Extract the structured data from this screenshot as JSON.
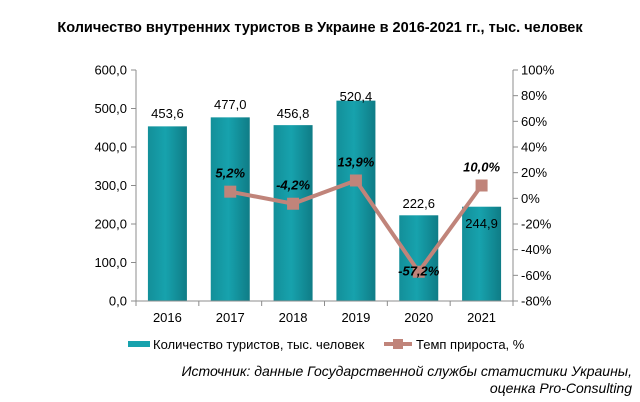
{
  "chart_data": {
    "type": "bar+line",
    "title": "Количество внутренних туристов в Украине в 2016-2021 гг., тыс. человек",
    "categories": [
      "2016",
      "2017",
      "2018",
      "2019",
      "2020",
      "2021"
    ],
    "series": [
      {
        "name": "Количество туристов, тыс. человек",
        "type": "bar",
        "axis": "left",
        "color": "#17a2ad",
        "values": [
          453.6,
          477.0,
          456.8,
          520.4,
          222.6,
          244.9
        ],
        "labels": [
          "453,6",
          "477,0",
          "456,8",
          "520,4",
          "222,6",
          "244,9"
        ]
      },
      {
        "name": "Темп прироста, %",
        "type": "line",
        "axis": "right",
        "color": "#c0847a",
        "values": [
          null,
          5.2,
          -4.2,
          13.9,
          -57.2,
          10.0
        ],
        "labels": [
          "",
          "5,2%",
          "-4,2%",
          "13,9%",
          "-57,2%",
          "10,0%"
        ]
      }
    ],
    "y_left": {
      "min": 0,
      "max": 600,
      "step": 100,
      "ticks": [
        "0,0",
        "100,0",
        "200,0",
        "300,0",
        "400,0",
        "500,0",
        "600,0"
      ]
    },
    "y_right": {
      "min": -80,
      "max": 100,
      "step": 20,
      "ticks": [
        "-80%",
        "-60%",
        "-40%",
        "-20%",
        "0%",
        "20%",
        "40%",
        "60%",
        "80%",
        "100%"
      ]
    },
    "legend_position": "bottom",
    "grid": false
  },
  "source": {
    "line1": "Источник: данные Государственной службы статистики Украины,",
    "line2": "оценка Pro-Consulting"
  }
}
